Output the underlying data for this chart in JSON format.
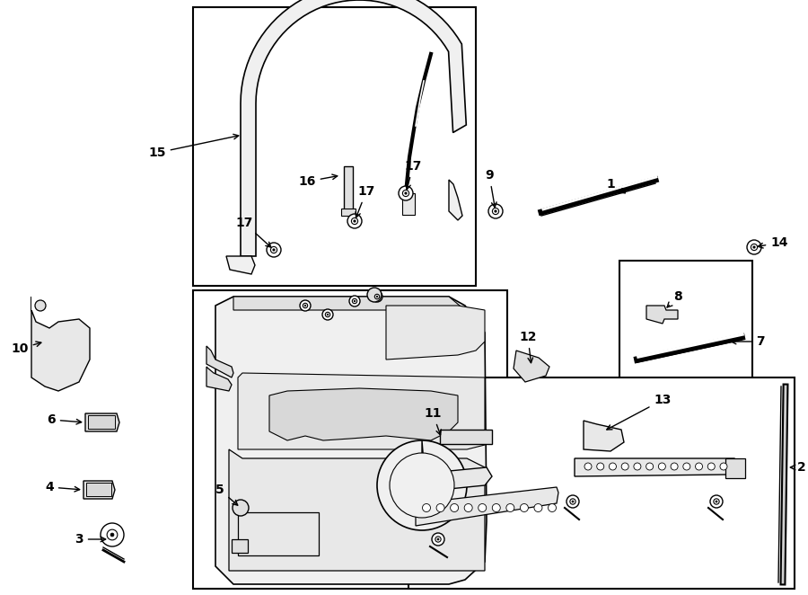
{
  "background_color": "#ffffff",
  "fig_width": 9.0,
  "fig_height": 6.62,
  "dpi": 100,
  "label_fontsize": 10,
  "label_fontweight": "bold"
}
